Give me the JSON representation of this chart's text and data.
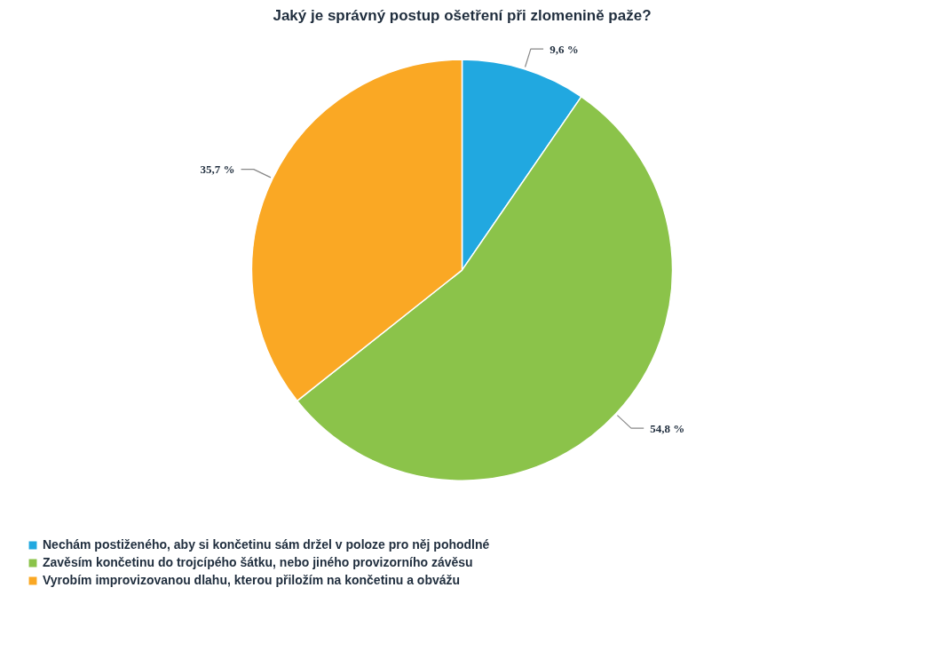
{
  "chart_data": {
    "type": "pie",
    "title": "Jaký je správný postup ošetření při zlomenině paže?",
    "categories": [
      "Nechám postiženého, aby si končetinu sám držel v poloze pro něj pohodlné",
      "Zavěsím končetinu do trojcípého šátku, nebo jiného provizorního závěsu",
      "Vyrobím improvizovanou dlahu, kterou přiložím na končetinu a obvážu"
    ],
    "values": [
      9.6,
      54.8,
      35.7
    ],
    "value_labels": [
      "9,6 %",
      "54,8 %",
      "35,7 %"
    ],
    "colors": [
      "#21a8e0",
      "#8bc34a",
      "#faa824"
    ],
    "legend": "bottom left"
  }
}
